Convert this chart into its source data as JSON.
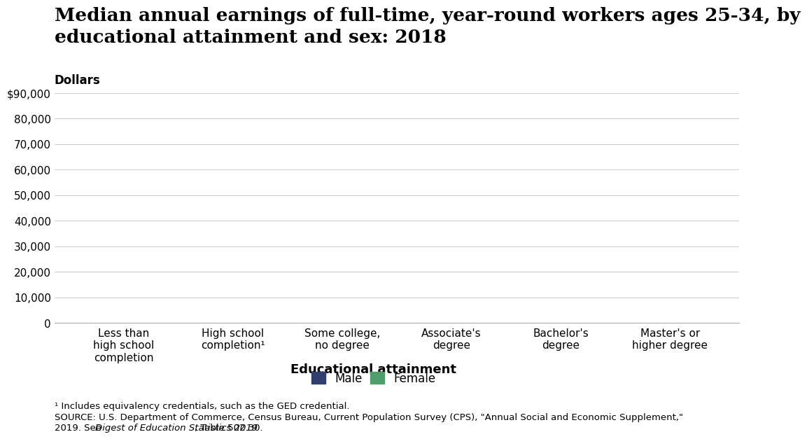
{
  "title": "Median annual earnings of full-time, year-round workers ages 25-34, by\neducational attainment and sex: 2018",
  "dollars_label": "Dollars",
  "xlabel": "Educational attainment",
  "categories": [
    "Less than\nhigh school\ncompletion",
    "High school\ncompletion¹",
    "Some college,\nno degree",
    "Associate's\ndegree",
    "Bachelor's\ndegree",
    "Master's or\nhigher degree"
  ],
  "male_values": [
    0,
    0,
    0,
    0,
    0,
    0
  ],
  "female_values": [
    0,
    0,
    0,
    0,
    0,
    0
  ],
  "male_color": "#2e3f6e",
  "female_color": "#4f9e6b",
  "ylim": [
    0,
    90000
  ],
  "yticks": [
    0,
    10000,
    20000,
    30000,
    40000,
    50000,
    60000,
    70000,
    80000,
    90000
  ],
  "ytick_labels": [
    "0",
    "10,000",
    "20,000",
    "30,000",
    "40,000",
    "50,000",
    "60,000",
    "70,000",
    "80,000",
    "$90,000"
  ],
  "background_color": "#ffffff",
  "footnote1": "¹ Includes equivalency credentials, such as the GED credential.",
  "footnote2": "SOURCE: U.S. Department of Commerce, Census Bureau, Current Population Survey (CPS), \"Annual Social and Economic Supplement,\"",
  "footnote3_pre": "2019. See ",
  "footnote3_italic": "Digest of Education Statistics 2019",
  "footnote3_post": ", Table 502.30.",
  "title_fontsize": 19,
  "dollars_fontsize": 12,
  "axis_label_fontsize": 13,
  "tick_fontsize": 11,
  "legend_fontsize": 12,
  "footnote_fontsize": 9.5
}
